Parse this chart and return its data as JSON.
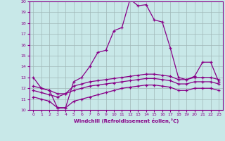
{
  "xlabel": "Windchill (Refroidissement éolien,°C)",
  "xlim": [
    -0.5,
    23.5
  ],
  "ylim": [
    10,
    20
  ],
  "xticks": [
    0,
    1,
    2,
    3,
    4,
    5,
    6,
    7,
    8,
    9,
    10,
    11,
    12,
    13,
    14,
    15,
    16,
    17,
    18,
    19,
    20,
    21,
    22,
    23
  ],
  "yticks": [
    10,
    11,
    12,
    13,
    14,
    15,
    16,
    17,
    18,
    19,
    20
  ],
  "bg_color": "#c8e8e8",
  "line_color": "#880088",
  "grid_color": "#a0b8b8",
  "lines": [
    {
      "x": [
        0,
        1,
        2,
        3,
        4,
        5,
        6,
        7,
        8,
        9,
        10,
        11,
        12,
        13,
        14,
        15,
        16,
        17,
        18,
        19,
        20,
        21,
        22,
        23
      ],
      "y": [
        13,
        12,
        11.8,
        10.2,
        10.2,
        12.6,
        13.0,
        14.0,
        15.3,
        15.5,
        17.3,
        17.6,
        20.2,
        19.6,
        19.7,
        18.3,
        18.1,
        15.7,
        13.0,
        12.8,
        13.1,
        14.4,
        14.4,
        12.6
      ]
    },
    {
      "x": [
        0,
        1,
        2,
        3,
        4,
        5,
        6,
        7,
        8,
        9,
        10,
        11,
        12,
        13,
        14,
        15,
        16,
        17,
        18,
        19,
        20,
        21,
        22,
        23
      ],
      "y": [
        12.2,
        12.0,
        11.8,
        11.5,
        11.5,
        12.2,
        12.4,
        12.6,
        12.7,
        12.8,
        12.9,
        13.0,
        13.1,
        13.2,
        13.3,
        13.3,
        13.2,
        13.1,
        12.8,
        12.8,
        13.0,
        13.0,
        13.0,
        12.8
      ]
    },
    {
      "x": [
        0,
        1,
        2,
        3,
        4,
        5,
        6,
        7,
        8,
        9,
        10,
        11,
        12,
        13,
        14,
        15,
        16,
        17,
        18,
        19,
        20,
        21,
        22,
        23
      ],
      "y": [
        11.8,
        11.6,
        11.4,
        11.2,
        11.5,
        11.8,
        12.0,
        12.2,
        12.3,
        12.4,
        12.5,
        12.6,
        12.7,
        12.8,
        12.9,
        12.9,
        12.8,
        12.7,
        12.4,
        12.4,
        12.6,
        12.6,
        12.6,
        12.4
      ]
    },
    {
      "x": [
        0,
        1,
        2,
        3,
        4,
        5,
        6,
        7,
        8,
        9,
        10,
        11,
        12,
        13,
        14,
        15,
        16,
        17,
        18,
        19,
        20,
        21,
        22,
        23
      ],
      "y": [
        11.2,
        11.0,
        10.8,
        10.2,
        10.2,
        10.8,
        11.0,
        11.2,
        11.4,
        11.6,
        11.8,
        12.0,
        12.1,
        12.2,
        12.3,
        12.3,
        12.2,
        12.1,
        11.8,
        11.8,
        12.0,
        12.0,
        12.0,
        11.8
      ]
    }
  ]
}
